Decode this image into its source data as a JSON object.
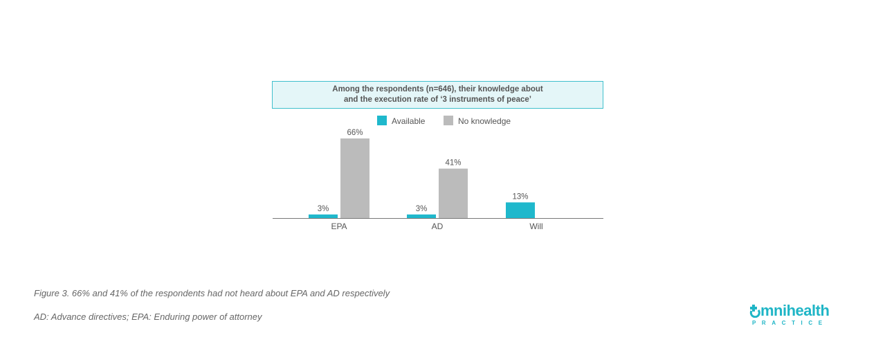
{
  "chart_data": {
    "type": "bar",
    "title": "Among the respondents (n=646), their knowledge about and the execution rate of ‘3 instruments of peace’",
    "title_lines": [
      "Among the respondents (n=646), their knowledge about",
      "and the execution rate of ‘3 instruments of peace’"
    ],
    "categories": [
      "EPA",
      "AD",
      "Will"
    ],
    "series": [
      {
        "name": "Available",
        "color": "#1fb8cc",
        "values": [
          3,
          3,
          13
        ],
        "labels": [
          "3%",
          "3%",
          "13%"
        ]
      },
      {
        "name": "No knowledge",
        "color": "#bbbbbb",
        "values": [
          66,
          41,
          null
        ],
        "labels": [
          "66%",
          "41%",
          ""
        ]
      }
    ],
    "ylim": [
      0,
      70
    ],
    "xlabel": "",
    "ylabel": "",
    "grid": false,
    "legend": "top-center"
  },
  "captions": {
    "figure": "Figure 3. 66% and 41% of the respondents had not heard about EPA and AD respectively",
    "abbreviations": "AD: Advance directives; EPA: Enduring power of attorney"
  },
  "logo": {
    "main": "mnihealth",
    "sub": "PRACTICE",
    "color": "#1fb5c6"
  }
}
